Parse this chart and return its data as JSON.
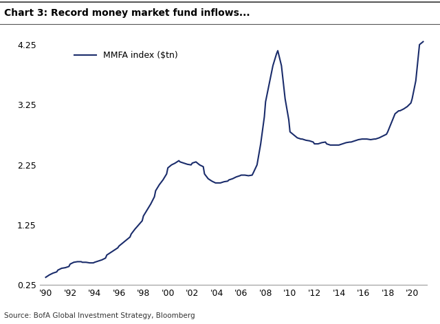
{
  "title": "Chart 3: Record money market fund inflows...",
  "source": "Source: BofA Global Investment Strategy, Bloomberg",
  "legend_label": "MMFA index ($tn)",
  "line_color": "#1a2c6b",
  "line_width": 1.5,
  "background_color": "#ffffff",
  "ylim": [
    0.25,
    4.4
  ],
  "yticks": [
    0.25,
    1.25,
    2.25,
    3.25,
    4.25
  ],
  "xtick_labels": [
    "'90",
    "'92",
    "'94",
    "'96",
    "'98",
    "'00",
    "'02",
    "'04",
    "'06",
    "'08",
    "'10",
    "'12",
    "'14",
    "'16",
    "'18",
    "'20"
  ],
  "xtick_positions": [
    1990,
    1992,
    1994,
    1996,
    1998,
    2000,
    2002,
    2004,
    2006,
    2008,
    2010,
    2012,
    2014,
    2016,
    2018,
    2020
  ],
  "xlim": [
    1989.5,
    2021.2
  ],
  "data_x": [
    1990.0,
    1990.3,
    1990.6,
    1990.9,
    1991.0,
    1991.3,
    1991.6,
    1991.9,
    1992.0,
    1992.3,
    1992.6,
    1992.9,
    1993.0,
    1993.3,
    1993.6,
    1993.9,
    1994.0,
    1994.3,
    1994.6,
    1994.9,
    1995.0,
    1995.3,
    1995.6,
    1995.9,
    1996.0,
    1996.3,
    1996.6,
    1996.9,
    1997.0,
    1997.3,
    1997.6,
    1997.9,
    1998.0,
    1998.3,
    1998.6,
    1998.9,
    1999.0,
    1999.3,
    1999.6,
    1999.9,
    2000.0,
    2000.3,
    2000.6,
    2000.9,
    2001.0,
    2001.3,
    2001.6,
    2001.9,
    2002.0,
    2002.3,
    2002.6,
    2002.9,
    2003.0,
    2003.3,
    2003.6,
    2003.9,
    2004.0,
    2004.3,
    2004.6,
    2004.9,
    2005.0,
    2005.3,
    2005.6,
    2005.9,
    2006.0,
    2006.3,
    2006.6,
    2006.9,
    2007.0,
    2007.3,
    2007.6,
    2007.9,
    2008.0,
    2008.3,
    2008.6,
    2008.9,
    2009.0,
    2009.3,
    2009.6,
    2009.9,
    2010.0,
    2010.3,
    2010.6,
    2010.9,
    2011.0,
    2011.3,
    2011.6,
    2011.9,
    2012.0,
    2012.3,
    2012.6,
    2012.9,
    2013.0,
    2013.3,
    2013.6,
    2013.9,
    2014.0,
    2014.3,
    2014.6,
    2014.9,
    2015.0,
    2015.3,
    2015.6,
    2015.9,
    2016.0,
    2016.3,
    2016.6,
    2016.9,
    2017.0,
    2017.3,
    2017.6,
    2017.9,
    2018.0,
    2018.3,
    2018.6,
    2018.9,
    2019.0,
    2019.3,
    2019.6,
    2019.9,
    2020.0,
    2020.3,
    2020.6,
    2020.9
  ],
  "data_y": [
    0.38,
    0.42,
    0.45,
    0.47,
    0.5,
    0.53,
    0.54,
    0.56,
    0.6,
    0.63,
    0.64,
    0.64,
    0.63,
    0.63,
    0.62,
    0.62,
    0.63,
    0.65,
    0.67,
    0.7,
    0.75,
    0.79,
    0.83,
    0.87,
    0.9,
    0.95,
    1.0,
    1.05,
    1.1,
    1.18,
    1.25,
    1.32,
    1.4,
    1.5,
    1.6,
    1.72,
    1.82,
    1.92,
    2.0,
    2.1,
    2.2,
    2.25,
    2.28,
    2.32,
    2.3,
    2.28,
    2.26,
    2.25,
    2.28,
    2.3,
    2.25,
    2.22,
    2.1,
    2.02,
    1.98,
    1.95,
    1.95,
    1.95,
    1.97,
    1.98,
    2.0,
    2.02,
    2.05,
    2.07,
    2.08,
    2.08,
    2.07,
    2.08,
    2.12,
    2.25,
    2.6,
    3.05,
    3.3,
    3.6,
    3.9,
    4.1,
    4.15,
    3.9,
    3.35,
    3.0,
    2.8,
    2.75,
    2.7,
    2.68,
    2.68,
    2.66,
    2.65,
    2.63,
    2.6,
    2.6,
    2.62,
    2.63,
    2.6,
    2.58,
    2.58,
    2.58,
    2.58,
    2.6,
    2.62,
    2.63,
    2.63,
    2.65,
    2.67,
    2.68,
    2.68,
    2.68,
    2.67,
    2.68,
    2.68,
    2.7,
    2.73,
    2.76,
    2.8,
    2.95,
    3.1,
    3.15,
    3.15,
    3.18,
    3.22,
    3.28,
    3.35,
    3.65,
    4.25,
    4.3
  ]
}
